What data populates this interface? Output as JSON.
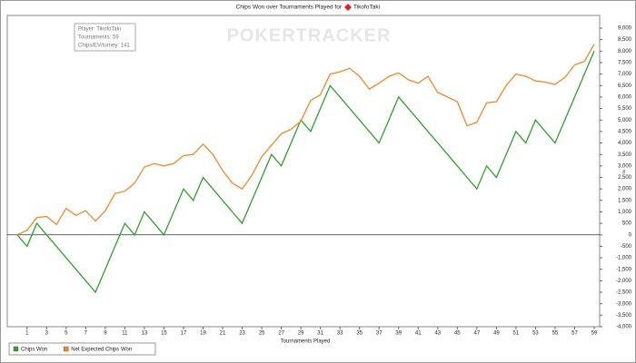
{
  "chart_data": {
    "type": "line",
    "title": "Chips Won over Tournaments Played for",
    "player": "TikofoTaki",
    "watermark": "POKERTRACKER",
    "annotations": [
      "Player: TikofoTaki",
      "Tournaments: 59",
      "Chips/EV/turney: 141"
    ],
    "x_label": "Tournaments Played",
    "y_label": "#",
    "x": [
      0,
      1,
      2,
      3,
      4,
      5,
      6,
      7,
      8,
      9,
      10,
      11,
      12,
      13,
      14,
      15,
      16,
      17,
      18,
      19,
      20,
      21,
      22,
      23,
      24,
      25,
      26,
      27,
      28,
      29,
      30,
      31,
      32,
      33,
      34,
      35,
      36,
      37,
      38,
      39,
      40,
      41,
      42,
      43,
      44,
      45,
      46,
      47,
      48,
      49,
      50,
      51,
      52,
      53,
      54,
      55,
      56,
      57,
      58,
      59
    ],
    "series": [
      {
        "name": "Chips Won",
        "color": "#2ca02c",
        "values": [
          0,
          -500,
          500,
          0,
          -500,
          -1000,
          -1500,
          -2000,
          -2500,
          -1500,
          -500,
          500,
          0,
          1000,
          500,
          0,
          1000,
          2000,
          1500,
          2500,
          2000,
          1500,
          1000,
          500,
          1500,
          2500,
          3500,
          3000,
          4000,
          5000,
          4500,
          5500,
          6500,
          6000,
          5500,
          5000,
          4500,
          4000,
          5000,
          6000,
          5500,
          5000,
          4500,
          4000,
          3500,
          3000,
          2500,
          2000,
          3000,
          2500,
          3500,
          4500,
          4000,
          5000,
          4500,
          4000,
          5000,
          6000,
          7000,
          8000
        ]
      },
      {
        "name": "Net Expected Chips Won",
        "color": "#f0882a",
        "values": [
          0,
          200,
          750,
          800,
          450,
          1150,
          850,
          1050,
          600,
          1050,
          1800,
          1900,
          2250,
          2950,
          3100,
          3000,
          3100,
          3450,
          3500,
          3950,
          3500,
          2800,
          2250,
          2000,
          2600,
          3400,
          3900,
          4400,
          4600,
          4950,
          5850,
          6100,
          7000,
          7100,
          7250,
          6900,
          6350,
          6600,
          6900,
          7050,
          6750,
          6600,
          6900,
          6200,
          6000,
          5800,
          4750,
          4900,
          5750,
          5800,
          6500,
          7000,
          6900,
          6700,
          6650,
          6550,
          6850,
          7400,
          7550,
          8300
        ]
      }
    ],
    "xlim": [
      0,
      59
    ],
    "xticks": [
      1,
      3,
      5,
      7,
      9,
      11,
      13,
      15,
      17,
      19,
      21,
      23,
      25,
      27,
      29,
      31,
      33,
      35,
      37,
      39,
      41,
      43,
      45,
      47,
      49,
      51,
      53,
      55,
      57,
      59
    ],
    "ylim": [
      -4000,
      9000
    ],
    "yticks": [
      {
        "value": -4000,
        "label": "-4,000"
      },
      {
        "value": -3500,
        "label": "-3,500"
      },
      {
        "value": -3000,
        "label": "-3,000"
      },
      {
        "value": -2500,
        "label": "-2,500"
      },
      {
        "value": -2000,
        "label": "-2,000"
      },
      {
        "value": -1500,
        "label": "-1,500"
      },
      {
        "value": -1000,
        "label": "-1,000"
      },
      -500,
      0,
      500,
      {
        "value": 1000,
        "label": "1,000"
      },
      {
        "value": 1500,
        "label": "1,500"
      },
      {
        "value": 2000,
        "label": "2,000"
      },
      {
        "value": 2500,
        "label": "2,500"
      },
      {
        "value": 3000,
        "label": "3,000"
      },
      {
        "value": 3500,
        "label": "3,500"
      },
      {
        "value": 4000,
        "label": "4,000"
      },
      {
        "value": 4500,
        "label": "4,500"
      },
      {
        "value": 5000,
        "label": "5,000"
      },
      {
        "value": 5500,
        "label": "5,500"
      },
      {
        "value": 6000,
        "label": "6,000"
      },
      {
        "value": 6500,
        "label": "6,500"
      },
      {
        "value": 7000,
        "label": "7,000"
      },
      {
        "value": 7500,
        "label": "7,500"
      },
      {
        "value": 8000,
        "label": "8,000"
      },
      {
        "value": 8500,
        "label": "8,500"
      },
      {
        "value": 9000,
        "label": "9,000"
      }
    ],
    "zero_line": true,
    "legend": "bottom-left"
  }
}
